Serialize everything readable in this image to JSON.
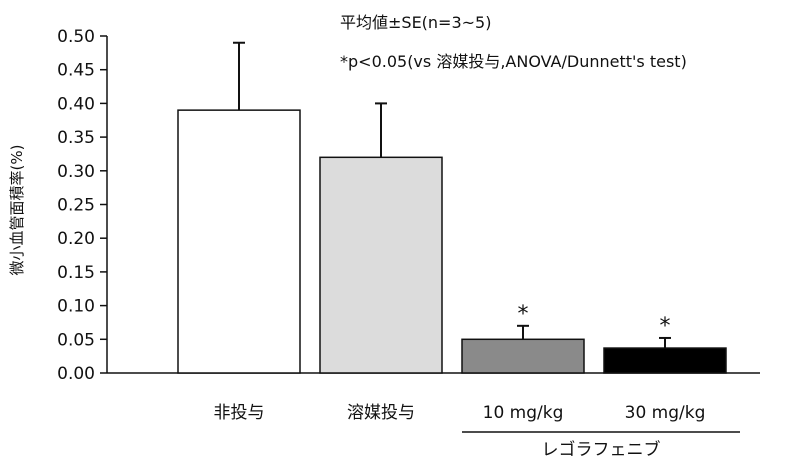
{
  "chart_data": {
    "type": "bar",
    "categories": [
      "非投与",
      "溶媒投与",
      "10 mg/kg",
      "30 mg/kg"
    ],
    "values": [
      0.39,
      0.32,
      0.05,
      0.037
    ],
    "errors": [
      0.1,
      0.08,
      0.02,
      0.015
    ],
    "significance": [
      "",
      "",
      "*",
      "*"
    ],
    "bar_colors": [
      "#ffffff",
      "#dcdcdc",
      "#8a8a8a",
      "#000000"
    ],
    "group_label": "レゴラフェニブ",
    "ylabel": "微小血管面積率(%)",
    "ylim": [
      0,
      0.5
    ],
    "yticks": [
      "0.00",
      "0.05",
      "0.10",
      "0.15",
      "0.20",
      "0.25",
      "0.30",
      "0.35",
      "0.40",
      "0.45",
      "0.50"
    ],
    "annotations": [
      "平均値±SE(n=3~5)",
      "*p<0.05(vs 溶媒投与,ANOVA/Dunnett's test)"
    ],
    "grid": false
  }
}
